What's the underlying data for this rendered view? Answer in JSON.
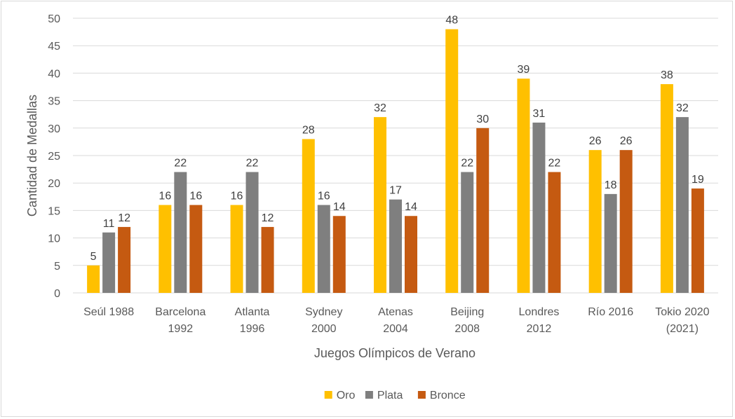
{
  "chart_data": {
    "type": "bar",
    "title": "",
    "xlabel": "Juegos Olímpicos de Verano",
    "ylabel": "Cantidad de Medallas",
    "ylim": [
      0,
      50
    ],
    "yticks": [
      0,
      5,
      10,
      15,
      20,
      25,
      30,
      35,
      40,
      45,
      50
    ],
    "grid": true,
    "legend_position": "bottom",
    "categories": [
      [
        "Seúl 1988"
      ],
      [
        "Barcelona",
        "1992"
      ],
      [
        "Atlanta",
        "1996"
      ],
      [
        "Sydney",
        "2000"
      ],
      [
        "Atenas",
        "2004"
      ],
      [
        "Beijing",
        "2008"
      ],
      [
        "Londres",
        "2012"
      ],
      [
        "Río 2016"
      ],
      [
        "Tokio 2020",
        "(2021)"
      ]
    ],
    "series": [
      {
        "name": "Oro",
        "color": "#ffc000",
        "values": [
          5,
          16,
          16,
          28,
          32,
          48,
          39,
          26,
          38
        ]
      },
      {
        "name": "Plata",
        "color": "#7f7f7f",
        "values": [
          11,
          22,
          22,
          16,
          17,
          22,
          31,
          18,
          32
        ]
      },
      {
        "name": "Bronce",
        "color": "#c55a11",
        "values": [
          12,
          16,
          12,
          14,
          14,
          30,
          22,
          26,
          19
        ]
      }
    ]
  }
}
